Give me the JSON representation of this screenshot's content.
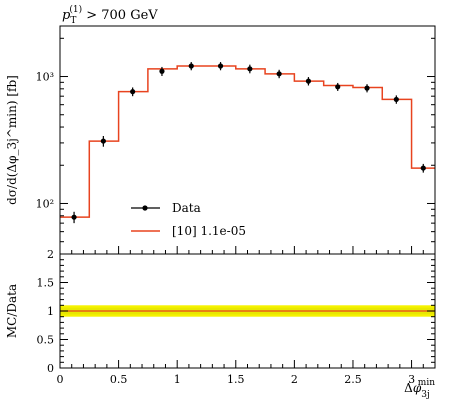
{
  "chart_data": [
    {
      "type": "line",
      "title": "p_T^(1) > 700 GeV",
      "title_parts": {
        "var": "p",
        "sub": "T",
        "sup": "(1)",
        "cut": " > 700 GeV"
      },
      "ylabel": "dσ/d(Δφ_3j^min) [fb]",
      "yscale": "log",
      "ylim": [
        40,
        2500
      ],
      "ytick_labels": [
        "10²",
        "10³"
      ],
      "ytick_values": [
        100,
        1000
      ],
      "xlim": [
        0,
        3.2
      ],
      "legend": {
        "position": "lower-center",
        "entries": [
          "Data",
          "[10] 1.1e-05"
        ]
      },
      "bin_edges": [
        0.0,
        0.25,
        0.5,
        0.75,
        1.0,
        1.25,
        1.5,
        1.75,
        2.0,
        2.25,
        2.5,
        2.75,
        3.0,
        3.2
      ],
      "series": [
        {
          "name": "Data",
          "kind": "points-with-errors",
          "color": "#000000",
          "x": [
            0.12,
            0.37,
            0.62,
            0.87,
            1.12,
            1.37,
            1.62,
            1.87,
            2.12,
            2.37,
            2.62,
            2.87,
            3.1
          ],
          "y": [
            78,
            310,
            760,
            1100,
            1210,
            1210,
            1150,
            1050,
            920,
            830,
            810,
            660,
            190
          ],
          "yerr": [
            8,
            30,
            60,
            90,
            90,
            90,
            90,
            80,
            70,
            60,
            60,
            50,
            15
          ]
        },
        {
          "name": "[10] 1.1e-05",
          "kind": "step",
          "color": "#e8431f",
          "values": [
            78,
            310,
            760,
            1150,
            1210,
            1210,
            1150,
            1050,
            920,
            850,
            820,
            660,
            190
          ]
        }
      ]
    },
    {
      "type": "line",
      "ylabel": "MC/Data",
      "ylim": [
        0,
        2
      ],
      "ytick_labels": [
        "0",
        "0.5",
        "1",
        "1.5",
        "2"
      ],
      "ytick_values": [
        0,
        0.5,
        1,
        1.5,
        2
      ],
      "xlim": [
        0,
        3.2
      ],
      "xtick_labels": [
        "0",
        "0.5",
        "1",
        "1.5",
        "2",
        "2.5",
        "3"
      ],
      "xtick_values": [
        0,
        0.5,
        1,
        1.5,
        2,
        2.5,
        3
      ],
      "xlabel": "Δφ_3j^min",
      "band": {
        "colors": [
          "#f6f200",
          "#e8e800"
        ],
        "lower": 0.9,
        "upper": 1.1
      },
      "series": [
        {
          "name": "",
          "kind": "step",
          "color": "#e8431f",
          "values": [
            1.0,
            1.0,
            1.0,
            1.0,
            1.0,
            1.0,
            1.0,
            1.0,
            1.0,
            1.0,
            1.0,
            1.0,
            1.0
          ]
        }
      ]
    }
  ]
}
